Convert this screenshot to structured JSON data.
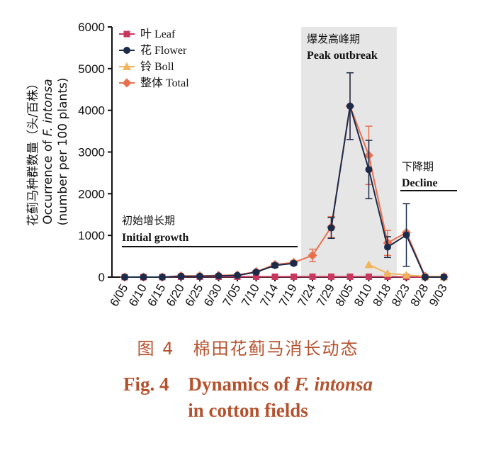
{
  "chart_data": {
    "type": "line",
    "ylabel_zh": "花蓟马种群数量（头/百株）",
    "ylabel_en_prefix": "Occurrence of ",
    "ylabel_en_species": "F. intonsa",
    "ylabel_en_unit": "(number per 100 plants)",
    "ylim": [
      0,
      6000
    ],
    "yticks": [
      "0",
      "1000",
      "2000",
      "3000",
      "4000",
      "5000",
      "6000"
    ],
    "categories": [
      "6/05",
      "6/10",
      "6/15",
      "6/20",
      "6/25",
      "6/30",
      "7/05",
      "7/10",
      "7/14",
      "7/19",
      "7/24",
      "7/29",
      "8/05",
      "8/10",
      "8/18",
      "8/23",
      "8/28",
      "9/03"
    ],
    "series": [
      {
        "name": "叶 Leaf",
        "color": "#c8385e",
        "marker": "square",
        "values": [
          0,
          0,
          0,
          10,
          10,
          10,
          10,
          10,
          10,
          10,
          10,
          10,
          10,
          10,
          10,
          5,
          0,
          0
        ],
        "err": [
          0,
          0,
          0,
          0,
          0,
          0,
          0,
          0,
          0,
          0,
          0,
          0,
          0,
          0,
          0,
          0,
          0,
          0
        ]
      },
      {
        "name": "花 Flower",
        "color": "#1c2b4a",
        "marker": "circle",
        "values": [
          0,
          0,
          0,
          20,
          20,
          30,
          40,
          120,
          280,
          330,
          null,
          1180,
          4100,
          2580,
          720,
          1010,
          0,
          0
        ],
        "err": [
          0,
          0,
          0,
          0,
          0,
          0,
          0,
          30,
          50,
          40,
          0,
          250,
          800,
          700,
          250,
          750,
          0,
          0
        ]
      },
      {
        "name": "铃 Boll",
        "color": "#f2b35a",
        "marker": "triangle",
        "values": [
          null,
          null,
          null,
          null,
          null,
          null,
          null,
          null,
          null,
          null,
          null,
          null,
          null,
          300,
          90,
          50,
          20,
          10
        ],
        "err": [
          0,
          0,
          0,
          0,
          0,
          0,
          0,
          0,
          0,
          0,
          0,
          0,
          0,
          0,
          0,
          0,
          0,
          0
        ]
      },
      {
        "name": "整体 Total",
        "color": "#e8704e",
        "marker": "diamond",
        "values": [
          0,
          0,
          0,
          30,
          30,
          40,
          50,
          130,
          300,
          350,
          520,
          1200,
          4100,
          2920,
          820,
          1070,
          20,
          10
        ],
        "err": [
          0,
          0,
          0,
          0,
          0,
          0,
          0,
          20,
          40,
          40,
          150,
          250,
          800,
          700,
          300,
          0,
          0,
          0
        ]
      }
    ],
    "phases": [
      {
        "zh": "初始增长期",
        "en": "Initial growth"
      },
      {
        "zh": "爆发高峰期",
        "en": "Peak outbreak"
      },
      {
        "zh": "下降期",
        "en": "Decline"
      }
    ]
  },
  "caption": {
    "zh": "图 4　棉田花蓟马消长动态",
    "en_line1_prefix": "Fig. 4　Dynamics of ",
    "en_species": "F. intonsa",
    "en_line2": "in cotton fields"
  }
}
